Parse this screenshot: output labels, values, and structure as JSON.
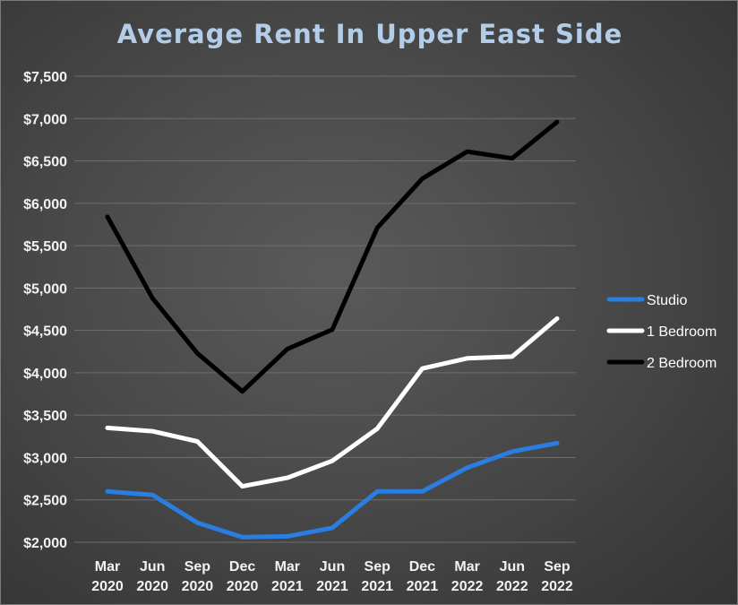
{
  "chart_data": {
    "type": "line",
    "title": "Average Rent In Upper East Side",
    "categories": [
      [
        "Mar",
        "2020"
      ],
      [
        "Jun",
        "2020"
      ],
      [
        "Sep",
        "2020"
      ],
      [
        "Dec",
        "2020"
      ],
      [
        "Mar",
        "2021"
      ],
      [
        "Jun",
        "2021"
      ],
      [
        "Sep",
        "2021"
      ],
      [
        "Dec",
        "2021"
      ],
      [
        "Mar",
        "2022"
      ],
      [
        "Jun",
        "2022"
      ],
      [
        "Sep",
        "2022"
      ]
    ],
    "yticks": [
      "$2,000",
      "$2,500",
      "$3,000",
      "$3,500",
      "$4,000",
      "$4,500",
      "$5,000",
      "$5,500",
      "$6,000",
      "$6,500",
      "$7,000",
      "$7,500"
    ],
    "ylim": [
      2000,
      7500
    ],
    "grid": true,
    "legend_position": "right",
    "series": [
      {
        "name": "Studio",
        "color": "#2a7de1",
        "values": [
          2600,
          2560,
          2230,
          2060,
          2070,
          2170,
          2600,
          2600,
          2880,
          3070,
          3170
        ]
      },
      {
        "name": "1 Bedroom",
        "color": "#ffffff",
        "values": [
          3350,
          3310,
          3190,
          2660,
          2760,
          2960,
          3340,
          4050,
          4170,
          4190,
          4640
        ]
      },
      {
        "name": "2 Bedroom",
        "color": "#000000",
        "values": [
          5840,
          4880,
          4230,
          3780,
          4280,
          4510,
          5710,
          6290,
          6610,
          6530,
          6960
        ]
      }
    ]
  }
}
